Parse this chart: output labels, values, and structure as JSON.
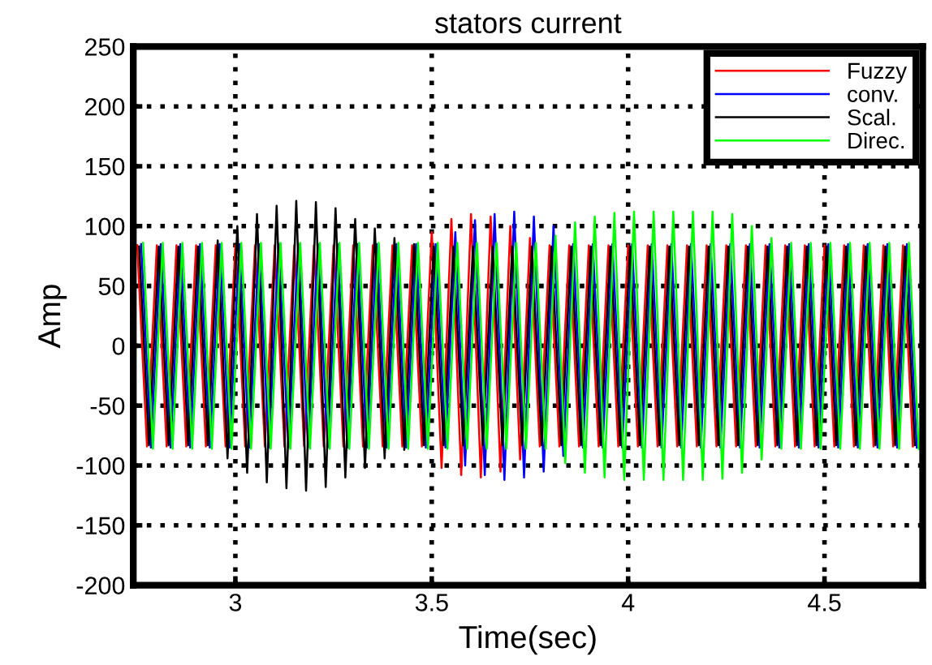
{
  "chart_data": {
    "type": "line",
    "title": "stators current",
    "xlabel": "Time(sec)",
    "ylabel": "Amp",
    "xlim": [
      2.74,
      4.75
    ],
    "ylim": [
      -200,
      250
    ],
    "xticks": [
      3,
      3.5,
      4,
      4.5
    ],
    "yticks": [
      -200,
      -150,
      -100,
      -50,
      0,
      50,
      100,
      150,
      200,
      250
    ],
    "grid": true,
    "legend": "top right",
    "marker": "none",
    "line_style": "solid",
    "series": [
      {
        "name": "Fuzzy",
        "color": "#ff0000",
        "x": [
          2.75,
          2.775,
          2.8,
          2.825,
          2.85,
          2.875,
          2.9,
          2.925,
          2.95,
          2.975,
          3,
          3.025,
          3.05,
          3.075,
          3.1,
          3.125,
          3.15,
          3.175,
          3.2,
          3.225,
          3.25,
          3.275,
          3.3,
          3.325,
          3.35,
          3.375,
          3.4,
          3.425,
          3.45,
          3.475,
          3.5,
          3.525,
          3.55,
          3.575,
          3.6,
          3.625,
          3.65,
          3.675,
          3.7,
          3.725,
          3.75,
          3.775,
          3.8,
          3.825,
          3.85,
          3.875,
          3.9,
          3.925,
          3.95,
          3.975,
          4,
          4.025,
          4.05,
          4.075,
          4.1,
          4.125,
          4.15,
          4.175,
          4.2,
          4.225,
          4.25,
          4.275,
          4.3,
          4.325,
          4.35,
          4.375,
          4.4,
          4.425,
          4.45,
          4.475,
          4.5,
          4.525,
          4.55,
          4.575,
          4.6,
          4.625,
          4.65,
          4.675,
          4.7,
          4.725
        ],
        "values": [
          84,
          -84,
          84,
          -84,
          84,
          -84,
          84,
          -84,
          84,
          -84,
          84,
          -84,
          84,
          -84,
          84,
          -84,
          84,
          -84,
          84,
          -84,
          84,
          -84,
          84,
          -84,
          84,
          -84,
          84,
          -84,
          84,
          -84,
          95,
          -102,
          106,
          -108,
          110,
          -110,
          108,
          -105,
          100,
          -95,
          90,
          -84,
          84,
          -84,
          84,
          -84,
          84,
          -84,
          84,
          -84,
          84,
          -84,
          84,
          -84,
          84,
          -84,
          84,
          -84,
          84,
          -84,
          84,
          -84,
          84,
          -84,
          84,
          -84,
          84,
          -84,
          84,
          -84,
          84,
          -84,
          84,
          -84,
          84,
          -84,
          84,
          -84,
          84,
          -84
        ]
      },
      {
        "name": "conv.",
        "color": "#0000ff",
        "x": [
          2.76,
          2.785,
          2.81,
          2.835,
          2.86,
          2.885,
          2.91,
          2.935,
          2.96,
          2.985,
          3.01,
          3.035,
          3.06,
          3.085,
          3.11,
          3.135,
          3.16,
          3.185,
          3.21,
          3.235,
          3.26,
          3.285,
          3.31,
          3.335,
          3.36,
          3.385,
          3.41,
          3.435,
          3.46,
          3.485,
          3.51,
          3.535,
          3.56,
          3.585,
          3.61,
          3.635,
          3.66,
          3.685,
          3.71,
          3.735,
          3.76,
          3.785,
          3.81,
          3.835,
          3.86,
          3.885,
          3.91,
          3.935,
          3.96,
          3.985,
          4.01,
          4.035,
          4.06,
          4.085,
          4.11,
          4.135,
          4.16,
          4.185,
          4.21,
          4.235,
          4.26,
          4.285,
          4.31,
          4.335,
          4.36,
          4.385,
          4.41,
          4.435,
          4.46,
          4.485,
          4.51,
          4.535,
          4.56,
          4.585,
          4.61,
          4.635,
          4.66,
          4.685,
          4.71,
          4.735
        ],
        "values": [
          85,
          -85,
          85,
          -85,
          85,
          -85,
          85,
          -85,
          85,
          -85,
          85,
          -85,
          85,
          -85,
          85,
          -85,
          85,
          -85,
          85,
          -85,
          85,
          -85,
          85,
          -85,
          85,
          -85,
          85,
          -85,
          85,
          -85,
          85,
          -85,
          95,
          -100,
          105,
          -108,
          110,
          -112,
          112,
          -110,
          108,
          -105,
          100,
          -92,
          85,
          -85,
          85,
          -85,
          85,
          -85,
          85,
          -85,
          85,
          -85,
          85,
          -85,
          85,
          -85,
          85,
          -85,
          85,
          -85,
          85,
          -85,
          85,
          -85,
          85,
          -85,
          85,
          -85,
          85,
          -85,
          85,
          -85,
          85,
          -85,
          85,
          -85,
          85,
          -85
        ]
      },
      {
        "name": "Scal.",
        "color": "#000000",
        "x": [
          2.755,
          2.78,
          2.805,
          2.83,
          2.855,
          2.88,
          2.905,
          2.93,
          2.955,
          2.98,
          3.005,
          3.03,
          3.055,
          3.08,
          3.105,
          3.13,
          3.155,
          3.18,
          3.205,
          3.23,
          3.255,
          3.28,
          3.305,
          3.33,
          3.355,
          3.38,
          3.405,
          3.43,
          3.455,
          3.48,
          3.505,
          3.53,
          3.555,
          3.58,
          3.605,
          3.63,
          3.655,
          3.68,
          3.705,
          3.73,
          3.755,
          3.78,
          3.805,
          3.83,
          3.855,
          3.88,
          3.905,
          3.93,
          3.955,
          3.98,
          4.005,
          4.03,
          4.055,
          4.08,
          4.105,
          4.13,
          4.155,
          4.18,
          4.205,
          4.23,
          4.255,
          4.28,
          4.305,
          4.33,
          4.355,
          4.38,
          4.405,
          4.43,
          4.455,
          4.48,
          4.505,
          4.53,
          4.555,
          4.58,
          4.605,
          4.63,
          4.655,
          4.68,
          4.705,
          4.73
        ],
        "values": [
          83,
          -83,
          83,
          -83,
          83,
          -83,
          83,
          -83,
          88,
          -94,
          100,
          -106,
          110,
          -114,
          117,
          -119,
          121,
          -121,
          120,
          -118,
          115,
          -110,
          106,
          -102,
          98,
          -94,
          90,
          -87,
          85,
          -83,
          83,
          -83,
          83,
          -83,
          83,
          -83,
          83,
          -83,
          83,
          -83,
          83,
          -83,
          83,
          -83,
          83,
          -83,
          83,
          -83,
          83,
          -83,
          83,
          -83,
          83,
          -83,
          83,
          -83,
          83,
          -83,
          83,
          -83,
          83,
          -83,
          83,
          -83,
          83,
          -83,
          83,
          -83,
          83,
          -83,
          83,
          -83,
          83,
          -83,
          83,
          -83,
          83,
          -83,
          83,
          -83
        ]
      },
      {
        "name": "Direc.",
        "color": "#00ff00",
        "x": [
          2.765,
          2.79,
          2.815,
          2.84,
          2.865,
          2.89,
          2.915,
          2.94,
          2.965,
          2.99,
          3.015,
          3.04,
          3.065,
          3.09,
          3.115,
          3.14,
          3.165,
          3.19,
          3.215,
          3.24,
          3.265,
          3.29,
          3.315,
          3.34,
          3.365,
          3.39,
          3.415,
          3.44,
          3.465,
          3.49,
          3.515,
          3.54,
          3.565,
          3.59,
          3.615,
          3.64,
          3.665,
          3.69,
          3.715,
          3.74,
          3.765,
          3.79,
          3.815,
          3.84,
          3.865,
          3.89,
          3.915,
          3.94,
          3.965,
          3.99,
          4.015,
          4.04,
          4.065,
          4.09,
          4.115,
          4.14,
          4.165,
          4.19,
          4.215,
          4.24,
          4.265,
          4.29,
          4.315,
          4.34,
          4.365,
          4.39,
          4.415,
          4.44,
          4.465,
          4.49,
          4.515,
          4.54,
          4.565,
          4.59,
          4.615,
          4.64,
          4.665,
          4.69,
          4.715,
          4.74
        ],
        "values": [
          86,
          -86,
          86,
          -86,
          86,
          -86,
          86,
          -86,
          86,
          -86,
          86,
          -86,
          86,
          -86,
          86,
          -86,
          86,
          -86,
          86,
          -86,
          86,
          -86,
          86,
          -86,
          86,
          -86,
          86,
          -86,
          86,
          -86,
          86,
          -86,
          86,
          -86,
          86,
          -86,
          86,
          -86,
          86,
          -86,
          86,
          -86,
          92,
          -98,
          103,
          -106,
          108,
          -110,
          111,
          -112,
          112,
          -112,
          112,
          -112,
          112,
          -112,
          112,
          -112,
          112,
          -111,
          110,
          -106,
          100,
          -95,
          90,
          -86,
          86,
          -86,
          86,
          -86,
          86,
          -86,
          86,
          -86,
          86,
          -86,
          86,
          -86,
          86,
          -86
        ]
      }
    ]
  }
}
